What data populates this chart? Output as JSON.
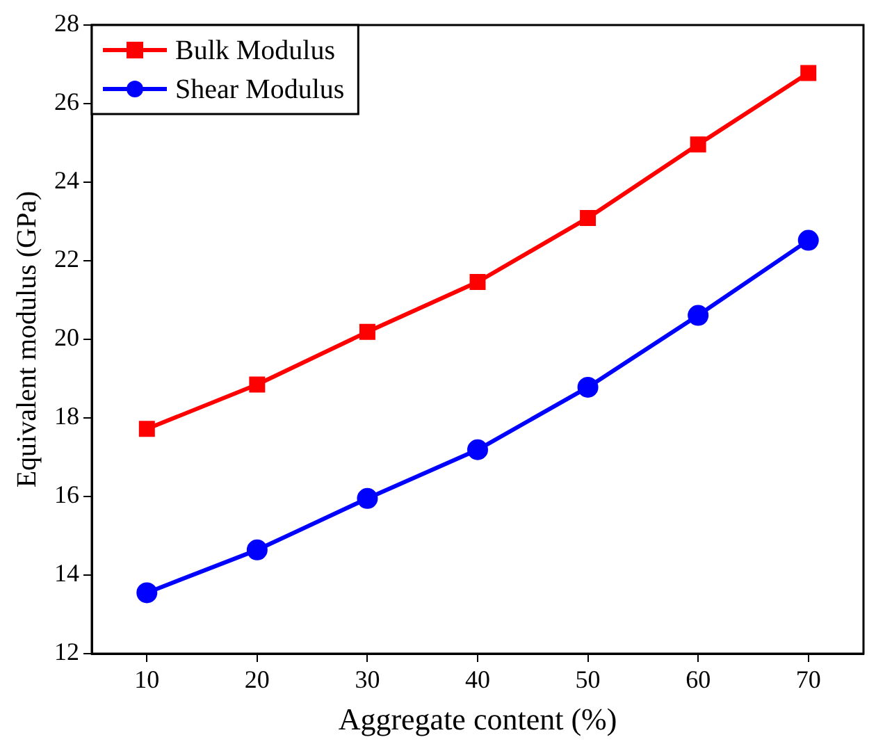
{
  "chart_data": {
    "type": "line",
    "xlabel": "Aggregate content (%)",
    "ylabel": "Equivalent modulus (GPa)",
    "x": [
      10,
      20,
      30,
      40,
      50,
      60,
      70
    ],
    "series": [
      {
        "name": "Bulk Modulus",
        "color": "#ff0000",
        "marker": "square",
        "values": [
          17.72,
          18.85,
          20.19,
          21.46,
          23.09,
          24.96,
          26.78
        ]
      },
      {
        "name": "Shear Modulus",
        "color": "#0000ff",
        "marker": "circle",
        "values": [
          13.55,
          14.64,
          15.95,
          17.19,
          18.78,
          20.61,
          22.52
        ]
      }
    ],
    "xlim": [
      5,
      75
    ],
    "xticks": [
      10,
      20,
      30,
      40,
      50,
      60,
      70
    ],
    "ylim": [
      12,
      28
    ],
    "yticks": [
      12,
      14,
      16,
      18,
      20,
      22,
      24,
      26,
      28
    ],
    "grid": false,
    "legend": "top left",
    "line_style": "solid"
  }
}
